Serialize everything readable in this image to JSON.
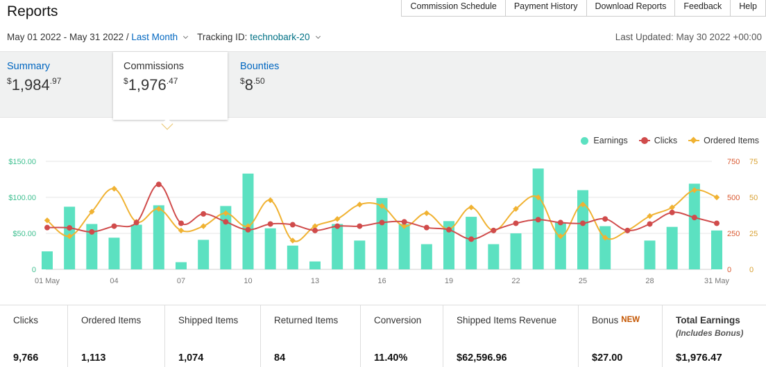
{
  "header": {
    "title": "Reports",
    "nav": [
      "Commission Schedule",
      "Payment History",
      "Download Reports",
      "Feedback",
      "Help"
    ]
  },
  "filters": {
    "date_range": "May 01 2022 - May 31 2022 /",
    "period": "Last Month",
    "tracking_label": "Tracking ID:",
    "tracking_id": "technobark-20",
    "last_updated": "Last Updated: May 30 2022 +00:00"
  },
  "tabs": [
    {
      "label": "Summary",
      "currency": "$",
      "whole": "1,984",
      "cents": ".97",
      "active": false
    },
    {
      "label": "Commissions",
      "currency": "$",
      "whole": "1,976",
      "cents": ".47",
      "active": true
    },
    {
      "label": "Bounties",
      "currency": "$",
      "whole": "8",
      "cents": ".50",
      "active": false
    }
  ],
  "legend": {
    "earnings": "Earnings",
    "clicks": "Clicks",
    "ordered": "Ordered Items"
  },
  "colors": {
    "earnings": "#5ce1c1",
    "clicks": "#d04b4b",
    "ordered": "#f0b232",
    "left_axis": "#3dbf8f",
    "right_axis1": "#d9582f",
    "right_axis2": "#d8a030",
    "link": "#0066c0"
  },
  "chart_data": {
    "type": "bar",
    "x": [
      "01 May",
      "02",
      "03",
      "04",
      "05",
      "06",
      "07",
      "08",
      "09",
      "10",
      "11",
      "12",
      "13",
      "14",
      "15",
      "16",
      "17",
      "18",
      "19",
      "20",
      "21",
      "22",
      "23",
      "24",
      "25",
      "26",
      "27",
      "28",
      "29",
      "30",
      "31 May"
    ],
    "x_tick_labels": [
      "01 May",
      "04",
      "07",
      "10",
      "13",
      "16",
      "19",
      "22",
      "25",
      "28",
      "31 May"
    ],
    "y_left_ticks": [
      "0",
      "$50.00",
      "$100.00",
      "$150.00"
    ],
    "y_left_range": [
      0,
      150
    ],
    "y_right1_ticks": [
      "0",
      "250",
      "500",
      "750"
    ],
    "y_right1_range": [
      0,
      750
    ],
    "y_right2_ticks": [
      "0",
      "25",
      "50",
      "75"
    ],
    "y_right2_range": [
      0,
      75
    ],
    "grid": true,
    "legend_position": "top-right",
    "series": [
      {
        "name": "Earnings",
        "type": "bar",
        "axis": "left",
        "values": [
          25,
          87,
          63,
          44,
          62,
          89,
          10,
          41,
          88,
          133,
          57,
          33,
          11,
          63,
          40,
          99,
          63,
          35,
          67,
          73,
          35,
          50,
          140,
          65,
          110,
          60,
          0,
          40,
          59,
          119,
          54
        ]
      },
      {
        "name": "Clicks",
        "type": "line",
        "axis": "right1",
        "values": [
          290,
          288,
          260,
          300,
          325,
          590,
          320,
          385,
          330,
          275,
          315,
          310,
          270,
          300,
          300,
          325,
          330,
          290,
          275,
          210,
          270,
          320,
          345,
          325,
          320,
          350,
          270,
          315,
          395,
          360,
          320
        ]
      },
      {
        "name": "Ordered Items",
        "type": "line",
        "axis": "right2",
        "values": [
          34,
          23,
          40,
          56,
          33,
          42,
          27,
          30,
          39,
          30,
          48,
          20,
          30,
          35,
          45,
          44,
          30,
          39,
          28,
          43,
          27,
          42,
          50,
          23,
          45,
          22,
          27,
          37,
          43,
          55,
          50
        ]
      }
    ]
  },
  "stats": [
    {
      "label": "Clicks",
      "value": "9,766"
    },
    {
      "label": "Ordered Items",
      "value": "1,113"
    },
    {
      "label": "Shipped Items",
      "value": "1,074"
    },
    {
      "label": "Returned Items",
      "value": "84"
    },
    {
      "label": "Conversion",
      "value": "11.40%"
    },
    {
      "label": "Shipped Items Revenue",
      "value": "$62,596.96"
    },
    {
      "label": "Bonus",
      "badge": "NEW",
      "value": "$27.00"
    },
    {
      "label": "Total Earnings",
      "sublabel": "(Includes Bonus)",
      "value": "$1,976.47"
    }
  ]
}
